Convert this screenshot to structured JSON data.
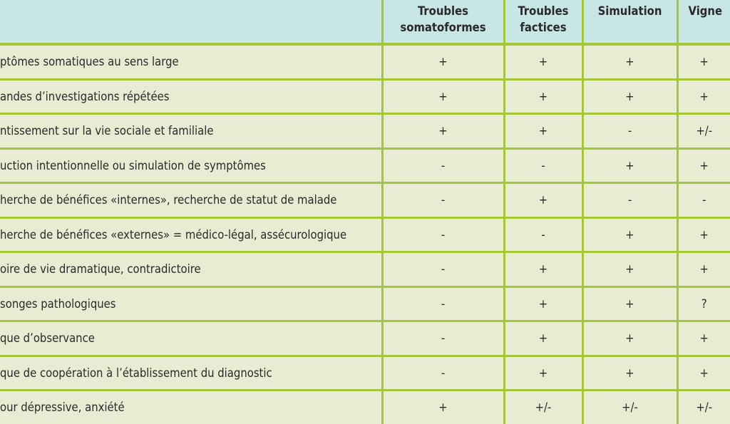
{
  "colors": {
    "header_bg": "#c8e6e6",
    "body_bg": "#e8ecd3",
    "grid": "#a6c63a"
  },
  "headers": [
    {
      "line1": "Troubles",
      "line2": "somatoformes"
    },
    {
      "line1": "Troubles",
      "line2": "factices"
    },
    {
      "line1": "Simulation",
      "line2": ""
    },
    {
      "line1": "Vigne",
      "line2": ""
    }
  ],
  "rows": [
    {
      "label": "ptômes somatiques au sens large",
      "values": [
        "+",
        "+",
        "+",
        "+"
      ]
    },
    {
      "label": "andes d’investigations répétées",
      "values": [
        "+",
        "+",
        "+",
        "+"
      ]
    },
    {
      "label": "ntissement sur la vie sociale et familiale",
      "values": [
        "+",
        "+",
        "-",
        "+/-"
      ]
    },
    {
      "label": "uction intentionnelle ou simulation de symptômes",
      "values": [
        "-",
        "-",
        "+",
        "+"
      ]
    },
    {
      "label": "herche de bénéfices «internes», recherche de statut de malade",
      "values": [
        "-",
        "+",
        "-",
        "-"
      ]
    },
    {
      "label": "herche de bénéfices «externes» = médico-légal, assécurologique",
      "values": [
        "-",
        "-",
        "+",
        "+"
      ]
    },
    {
      "label": "oire de vie dramatique, contradictoire",
      "values": [
        "-",
        "+",
        "+",
        "+"
      ]
    },
    {
      "label": "songes pathologiques",
      "values": [
        "-",
        "+",
        "+",
        "?"
      ]
    },
    {
      "label": "que d’observance",
      "values": [
        "-",
        "+",
        "+",
        "+"
      ]
    },
    {
      "label": "que de coopération à l’établissement du diagnostic",
      "values": [
        "-",
        "+",
        "+",
        "+"
      ]
    },
    {
      "label": "our dépressive, anxiété",
      "values": [
        "+",
        "+/-",
        "+/-",
        "+/-"
      ]
    }
  ]
}
